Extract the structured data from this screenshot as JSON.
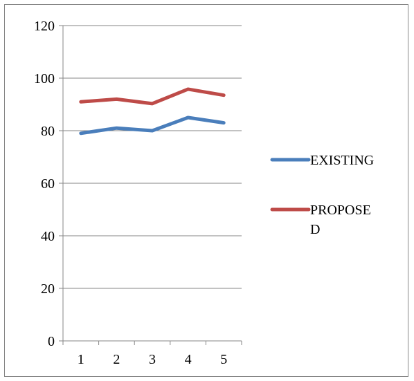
{
  "chart_data": {
    "type": "line",
    "title": "",
    "xlabel": "",
    "ylabel": "",
    "categories": [
      "1",
      "2",
      "3",
      "4",
      "5"
    ],
    "ylim": [
      0,
      120
    ],
    "yticks": [
      0,
      20,
      40,
      60,
      80,
      100,
      120
    ],
    "grid": true,
    "legend_position": "right",
    "series": [
      {
        "name": "EXISTING",
        "color": "#4a7ebb",
        "values": [
          79,
          81,
          80,
          85,
          83
        ]
      },
      {
        "name": "PROPOSED",
        "color": "#be4b48",
        "values": [
          91,
          92,
          90.3,
          95.8,
          93.5
        ]
      }
    ],
    "legend_lines": [
      [
        "EXISTING"
      ],
      [
        "PROPOSE",
        "D"
      ]
    ]
  }
}
